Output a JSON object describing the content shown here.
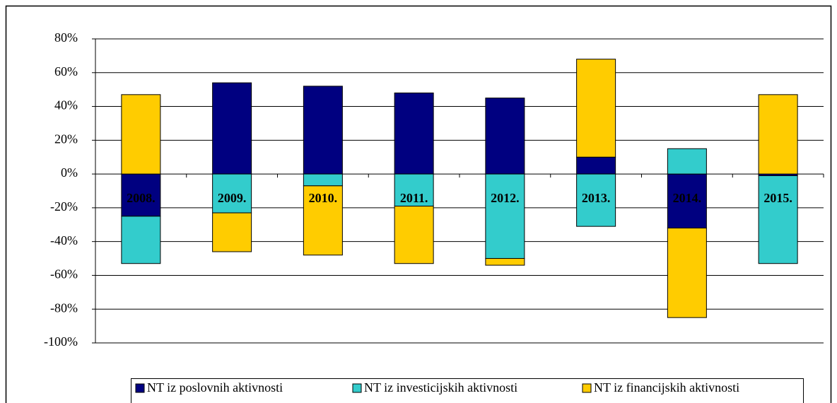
{
  "chart_data": {
    "type": "bar",
    "stacked": true,
    "categories": [
      "2008.",
      "2009.",
      "2010.",
      "2011.",
      "2012.",
      "2013.",
      "2014.",
      "2015."
    ],
    "series": [
      {
        "name": "NT iz poslovnih aktivnosti",
        "color": "#000080",
        "values": [
          -25,
          54,
          52,
          48,
          45,
          10,
          -32,
          -1
        ]
      },
      {
        "name": "NT iz investicijskih aktivnosti",
        "color": "#33CCCC",
        "values": [
          -28,
          -23,
          -7,
          -19,
          -50,
          -31,
          15,
          -52
        ]
      },
      {
        "name": "NT iz financijskih aktivnosti",
        "color": "#FFCC00",
        "values": [
          47,
          -23,
          -41,
          -34,
          -4,
          58,
          -53,
          47
        ]
      }
    ],
    "ylim": [
      -100,
      80
    ],
    "yticks": [
      {
        "value": -100,
        "label": "-100%"
      },
      {
        "value": -80,
        "label": "-80%"
      },
      {
        "value": -60,
        "label": "-60%"
      },
      {
        "value": -40,
        "label": "-40%"
      },
      {
        "value": -20,
        "label": "-20%"
      },
      {
        "value": 0,
        "label": "0%"
      },
      {
        "value": 20,
        "label": "20%"
      },
      {
        "value": 40,
        "label": "40%"
      },
      {
        "value": 60,
        "label": "60%"
      },
      {
        "value": 80,
        "label": "80%"
      }
    ],
    "grid": true,
    "legend": "bottom"
  }
}
